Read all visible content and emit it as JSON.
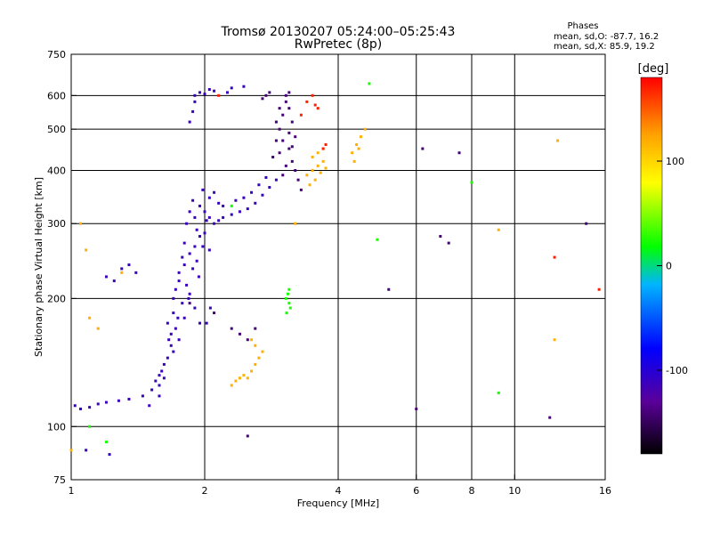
{
  "header": {
    "title": "Tromsø 20130207 05:24:00–05:25:43",
    "subtitle": "RwPretec (8p)",
    "stats_title": "Phases",
    "stats_o": "mean, sd,O:  -87.7, 16.2",
    "stats_x": "mean, sd,X:   85.9, 19.2"
  },
  "chart_data": {
    "type": "scatter",
    "title": "Tromsø 20130207 05:24:00–05:25:43",
    "subtitle": "RwPretec (8p)",
    "xlabel": "Frequency [MHz]",
    "ylabel": "Stationary phase Virtual Height [km]",
    "x_scale": "log",
    "y_scale": "log",
    "xlim": [
      1,
      16
    ],
    "ylim": [
      75,
      750
    ],
    "x_ticks": [
      1,
      2,
      4,
      6,
      8,
      10,
      16
    ],
    "x_tick_labels": [
      "1",
      "2",
      "4",
      "6",
      "8",
      "10",
      "16"
    ],
    "y_ticks": [
      75,
      100,
      200,
      300,
      400,
      500,
      600,
      750
    ],
    "y_tick_labels": [
      "75",
      "100",
      "200",
      "300",
      "400",
      "500",
      "600",
      "750"
    ],
    "x_gridlines": [
      2,
      4,
      6,
      8,
      10
    ],
    "y_gridlines": [
      100,
      200,
      300,
      400,
      500,
      600
    ],
    "grid": true,
    "colorbar": {
      "label": "[deg]",
      "range": [
        -180,
        180
      ],
      "ticks": [
        100,
        0,
        -100
      ],
      "tick_labels": [
        "100",
        "0",
        "-100"
      ],
      "colors": [
        "#000000",
        "#5a009a",
        "#0000ff",
        "#00b4ff",
        "#00ff00",
        "#ffff00",
        "#ffa000",
        "#ff0000"
      ]
    },
    "series": [
      {
        "phase": -110,
        "points": [
          [
            1.02,
            112
          ],
          [
            1.05,
            110
          ],
          [
            1.1,
            111
          ],
          [
            1.15,
            113
          ],
          [
            1.2,
            114
          ],
          [
            1.28,
            115
          ],
          [
            1.35,
            116
          ],
          [
            1.45,
            118
          ],
          [
            1.52,
            122
          ],
          [
            1.58,
            125
          ],
          [
            1.62,
            130
          ],
          [
            1.65,
            145
          ],
          [
            1.68,
            165
          ],
          [
            1.7,
            185
          ],
          [
            1.72,
            210
          ],
          [
            1.75,
            230
          ],
          [
            1.78,
            250
          ],
          [
            1.8,
            270
          ],
          [
            1.82,
            300
          ],
          [
            1.85,
            320
          ],
          [
            1.88,
            340
          ],
          [
            1.9,
            310
          ],
          [
            1.92,
            290
          ],
          [
            1.95,
            330
          ],
          [
            1.98,
            360
          ],
          [
            2.0,
            320
          ],
          [
            2.02,
            305
          ],
          [
            2.05,
            310
          ],
          [
            2.1,
            300
          ],
          [
            2.15,
            305
          ],
          [
            2.2,
            310
          ],
          [
            2.3,
            315
          ],
          [
            2.4,
            320
          ],
          [
            2.5,
            325
          ],
          [
            2.6,
            335
          ],
          [
            2.7,
            350
          ],
          [
            2.8,
            365
          ],
          [
            2.9,
            380
          ],
          [
            1.65,
            175
          ],
          [
            1.7,
            200
          ],
          [
            1.75,
            220
          ],
          [
            1.8,
            240
          ],
          [
            1.85,
            205
          ],
          [
            1.9,
            190
          ],
          [
            1.95,
            175
          ],
          [
            1.7,
            150
          ],
          [
            1.75,
            160
          ],
          [
            1.8,
            180
          ],
          [
            1.85,
            255
          ],
          [
            1.9,
            265
          ],
          [
            1.95,
            280
          ],
          [
            2.0,
            285
          ],
          [
            2.05,
            260
          ],
          [
            1.6,
            135
          ],
          [
            1.62,
            140
          ],
          [
            1.68,
            155
          ],
          [
            1.72,
            170
          ],
          [
            1.78,
            195
          ],
          [
            1.82,
            215
          ],
          [
            1.88,
            235
          ],
          [
            1.92,
            245
          ],
          [
            1.98,
            265
          ],
          [
            2.02,
            175
          ],
          [
            2.06,
            190
          ],
          [
            1.55,
            128
          ],
          [
            1.58,
            132
          ],
          [
            1.66,
            160
          ],
          [
            1.74,
            180
          ],
          [
            1.84,
            200
          ],
          [
            1.94,
            225
          ],
          [
            2.05,
            345
          ],
          [
            2.1,
            355
          ],
          [
            2.15,
            335
          ],
          [
            1.9,
            600
          ],
          [
            1.95,
            610
          ],
          [
            2.0,
            605
          ],
          [
            2.05,
            620
          ],
          [
            2.1,
            615
          ],
          [
            2.25,
            610
          ],
          [
            2.3,
            625
          ],
          [
            2.45,
            630
          ],
          [
            1.85,
            520
          ],
          [
            1.88,
            550
          ],
          [
            1.9,
            580
          ],
          [
            1.3,
            235
          ],
          [
            1.35,
            240
          ],
          [
            1.4,
            230
          ],
          [
            1.2,
            225
          ],
          [
            1.25,
            220
          ],
          [
            1.08,
            88
          ],
          [
            1.22,
            86
          ],
          [
            1.5,
            112
          ],
          [
            1.58,
            118
          ],
          [
            2.2,
            330
          ],
          [
            2.35,
            340
          ],
          [
            2.45,
            345
          ],
          [
            2.55,
            355
          ],
          [
            2.65,
            370
          ],
          [
            2.75,
            385
          ]
        ]
      },
      {
        "phase": -140,
        "points": [
          [
            2.85,
            430
          ],
          [
            2.9,
            470
          ],
          [
            2.95,
            500
          ],
          [
            3.0,
            540
          ],
          [
            3.05,
            580
          ],
          [
            3.1,
            560
          ],
          [
            3.15,
            520
          ],
          [
            3.2,
            480
          ],
          [
            3.1,
            450
          ],
          [
            3.05,
            410
          ],
          [
            3.0,
            390
          ],
          [
            2.95,
            440
          ],
          [
            3.15,
            420
          ],
          [
            3.2,
            400
          ],
          [
            3.25,
            380
          ],
          [
            3.3,
            360
          ],
          [
            3.05,
            600
          ],
          [
            3.1,
            610
          ],
          [
            2.9,
            520
          ],
          [
            2.95,
            560
          ],
          [
            3.0,
            470
          ],
          [
            3.1,
            490
          ],
          [
            3.15,
            455
          ],
          [
            2.7,
            590
          ],
          [
            2.75,
            600
          ],
          [
            2.8,
            610
          ],
          [
            2.4,
            165
          ],
          [
            2.5,
            160
          ],
          [
            2.6,
            170
          ],
          [
            2.3,
            170
          ],
          [
            1.85,
            195
          ],
          [
            2.1,
            185
          ],
          [
            6.0,
            110
          ],
          [
            6.2,
            450
          ],
          [
            7.5,
            440
          ],
          [
            12.0,
            105
          ],
          [
            14.5,
            300
          ],
          [
            6.8,
            280
          ],
          [
            7.1,
            270
          ],
          [
            5.2,
            210
          ],
          [
            2.5,
            95
          ]
        ]
      },
      {
        "phase": 120,
        "points": [
          [
            3.4,
            390
          ],
          [
            3.5,
            400
          ],
          [
            3.6,
            410
          ],
          [
            3.7,
            420
          ],
          [
            3.45,
            370
          ],
          [
            3.55,
            380
          ],
          [
            3.65,
            395
          ],
          [
            3.75,
            405
          ],
          [
            3.5,
            430
          ],
          [
            3.6,
            440
          ],
          [
            3.7,
            450
          ],
          [
            4.3,
            440
          ],
          [
            4.4,
            460
          ],
          [
            4.5,
            480
          ],
          [
            4.6,
            500
          ],
          [
            4.35,
            420
          ],
          [
            4.45,
            450
          ],
          [
            2.3,
            125
          ],
          [
            2.35,
            128
          ],
          [
            2.4,
            130
          ],
          [
            2.45,
            132
          ],
          [
            2.5,
            130
          ],
          [
            2.55,
            135
          ],
          [
            2.6,
            140
          ],
          [
            2.65,
            145
          ],
          [
            2.7,
            150
          ],
          [
            2.55,
            160
          ],
          [
            2.6,
            155
          ],
          [
            1.05,
            300
          ],
          [
            1.08,
            260
          ],
          [
            1.1,
            180
          ],
          [
            1.15,
            170
          ],
          [
            1.0,
            88
          ],
          [
            9.2,
            290
          ],
          [
            12.5,
            470
          ],
          [
            12.3,
            160
          ],
          [
            3.2,
            300
          ],
          [
            1.3,
            230
          ]
        ]
      },
      {
        "phase": 30,
        "points": [
          [
            3.05,
            200
          ],
          [
            3.1,
            195
          ],
          [
            3.08,
            205
          ],
          [
            3.12,
            190
          ],
          [
            3.06,
            185
          ],
          [
            3.1,
            210
          ],
          [
            1.1,
            100
          ],
          [
            1.2,
            92
          ],
          [
            2.3,
            330
          ],
          [
            9.2,
            120
          ],
          [
            4.9,
            275
          ],
          [
            8.0,
            375
          ],
          [
            4.7,
            640
          ]
        ]
      },
      {
        "phase": 170,
        "points": [
          [
            3.3,
            540
          ],
          [
            3.4,
            580
          ],
          [
            3.5,
            600
          ],
          [
            3.55,
            570
          ],
          [
            3.6,
            560
          ],
          [
            3.7,
            450
          ],
          [
            3.75,
            460
          ],
          [
            12.3,
            250
          ],
          [
            15.5,
            210
          ],
          [
            2.15,
            600
          ]
        ]
      }
    ]
  }
}
